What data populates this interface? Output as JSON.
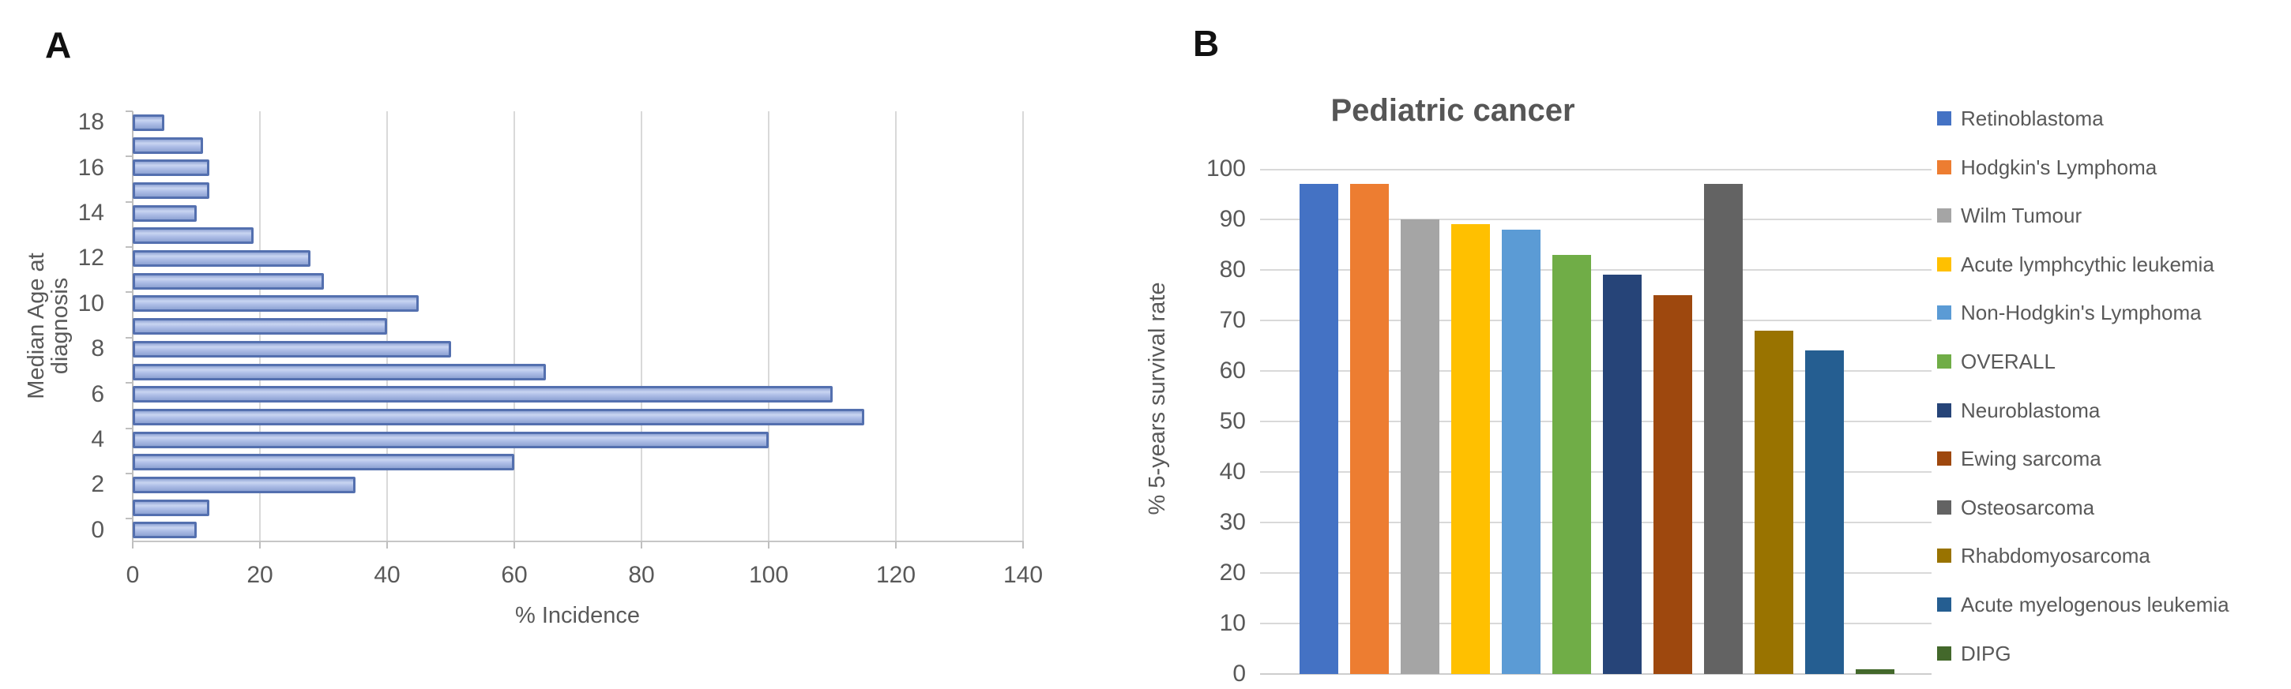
{
  "panels": {
    "a": {
      "label": "A"
    },
    "b": {
      "label": "B"
    }
  },
  "chart_data": [
    {
      "id": "median-age-at-diagnosis-incidence",
      "type": "bar",
      "orientation": "horizontal",
      "title": "",
      "xlabel": "% Incidence",
      "ylabel": "Median Age at diagnosis",
      "categories": [
        18,
        17,
        16,
        15,
        14,
        13,
        12,
        11,
        10,
        9,
        8,
        7,
        6,
        5,
        4,
        3,
        2,
        1,
        0
      ],
      "values": [
        5,
        11,
        12,
        12,
        10,
        19,
        28,
        30,
        45,
        40,
        50,
        65,
        110,
        115,
        100,
        60,
        35,
        12,
        10
      ],
      "xlim": [
        0,
        140
      ],
      "xticks": [
        0,
        20,
        40,
        60,
        80,
        100,
        120,
        140
      ],
      "category_label_interval": 2,
      "grid": true,
      "bar_fill": "#aebee7",
      "bar_border": "#5470af"
    },
    {
      "id": "pediatric-cancer-survival",
      "type": "bar",
      "orientation": "vertical",
      "title": "Pediatric cancer",
      "xlabel": "",
      "ylabel": "% 5-years survival rate",
      "ylim": [
        0,
        100
      ],
      "yticks": [
        0,
        10,
        20,
        30,
        40,
        50,
        60,
        70,
        80,
        90,
        100
      ],
      "grid": true,
      "legend_position": "right",
      "series": [
        {
          "name": "Retinoblastoma",
          "value": 97,
          "color": "#4472C4"
        },
        {
          "name": "Hodgkin's Lymphoma",
          "value": 97,
          "color": "#ED7D31"
        },
        {
          "name": "Wilm Tumour",
          "value": 90,
          "color": "#A5A5A5"
        },
        {
          "name": "Acute lymphcythic leukemia",
          "value": 89,
          "color": "#FFC000"
        },
        {
          "name": "Non-Hodgkin's Lymphoma",
          "value": 88,
          "color": "#5B9BD5"
        },
        {
          "name": "OVERALL",
          "value": 83,
          "color": "#70AD47"
        },
        {
          "name": "Neuroblastoma",
          "value": 79,
          "color": "#264478"
        },
        {
          "name": "Ewing sarcoma",
          "value": 75,
          "color": "#9E480E"
        },
        {
          "name": "Osteosarcoma",
          "value": 97,
          "color": "#636363"
        },
        {
          "name": "Rhabdomyosarcoma",
          "value": 68,
          "color": "#997300"
        },
        {
          "name": "Acute myelogenous leukemia",
          "value": 64,
          "color": "#255E91"
        },
        {
          "name": "DIPG",
          "value": 1,
          "color": "#43682B"
        }
      ]
    }
  ],
  "text_colors": {
    "tick": "#595959",
    "title": "#565656"
  }
}
